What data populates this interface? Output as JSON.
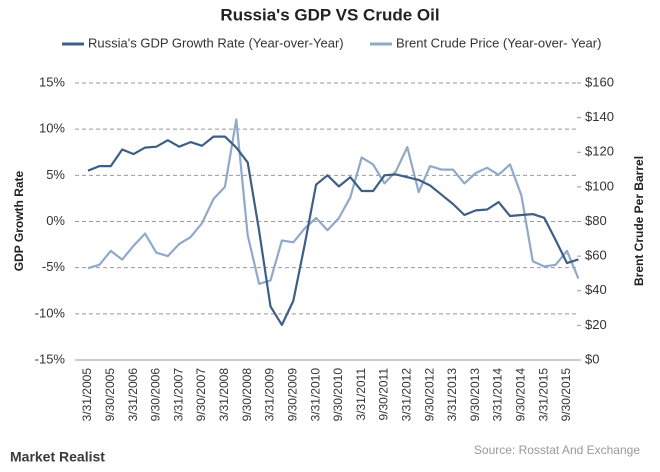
{
  "chart_data": {
    "type": "line",
    "title": "Russia's GDP VS Crude Oil",
    "y_label": "GDP Growth Rate",
    "y2_label": "Brent Crude Per Barrel",
    "source": "Source: Rosstat And Exchange",
    "logo_text": "Market Realist",
    "categories": [
      "3/31/2005",
      null,
      "9/30/2005",
      null,
      "3/31/2006",
      null,
      "9/30/2006",
      null,
      "3/31/2007",
      null,
      "9/30/2007",
      null,
      "3/31/2008",
      null,
      "9/30/2008",
      null,
      "3/31/2009",
      null,
      "9/30/2009",
      null,
      "3/31/2010",
      null,
      "9/30/2010",
      null,
      "3/31/2011",
      null,
      "9/30/2011",
      null,
      "3/31/2012",
      null,
      "9/30/2012",
      null,
      "3/31/2013",
      null,
      "9/30/2013",
      null,
      "3/31/2014",
      null,
      "9/30/2014",
      null,
      "3/31/2015",
      null,
      "9/30/2015",
      null
    ],
    "series": [
      {
        "name": "Russia's GDP  Growth Rate (Year-over-Year)",
        "color": "#3e5f85",
        "axis": "y",
        "values": [
          5.5,
          6.0,
          6.0,
          7.8,
          7.3,
          8.0,
          8.1,
          8.8,
          8.1,
          8.6,
          8.2,
          9.2,
          9.2,
          8.0,
          6.4,
          -1.0,
          -9.2,
          -11.2,
          -8.6,
          -2.5,
          4.0,
          5.0,
          3.8,
          4.8,
          3.3,
          3.3,
          5.0,
          5.1,
          4.8,
          4.5,
          3.9,
          2.9,
          1.9,
          0.7,
          1.2,
          1.3,
          2.1,
          0.6,
          0.7,
          0.8,
          0.4,
          -2.0,
          -4.5,
          -4.1
        ]
      },
      {
        "name": "Brent Crude Price (Year-over- Year)",
        "color": "#91a9c9",
        "axis": "y2",
        "values": [
          53,
          55,
          63,
          58,
          66,
          73,
          62,
          60,
          67,
          71,
          79,
          93,
          100,
          139,
          72,
          44,
          46,
          69,
          68,
          76,
          82,
          75,
          82,
          94,
          117,
          113,
          102,
          109,
          123,
          97,
          112,
          110,
          110,
          102,
          108,
          111,
          107,
          113,
          95,
          57,
          54,
          55,
          63,
          47
        ]
      }
    ],
    "ylim": [
      -15,
      15
    ],
    "yticks": [
      {
        "value": -15,
        "label": "-15%"
      },
      {
        "value": -10,
        "label": "-10%"
      },
      {
        "value": -5,
        "label": "-5%"
      },
      {
        "value": 0,
        "label": "0%"
      },
      {
        "value": 5,
        "label": "5%"
      },
      {
        "value": 10,
        "label": "10%"
      },
      {
        "value": 15,
        "label": "15%"
      }
    ],
    "y2lim": [
      0,
      160
    ],
    "y2ticks": [
      {
        "value": 0,
        "label": "$0"
      },
      {
        "value": 20,
        "label": "$20"
      },
      {
        "value": 40,
        "label": "$40"
      },
      {
        "value": 60,
        "label": "$60"
      },
      {
        "value": 80,
        "label": "$80"
      },
      {
        "value": 100,
        "label": "$100"
      },
      {
        "value": 120,
        "label": "$120"
      },
      {
        "value": 140,
        "label": "$140"
      },
      {
        "value": 160,
        "label": "$160"
      }
    ],
    "grid": true,
    "legend": "top"
  }
}
